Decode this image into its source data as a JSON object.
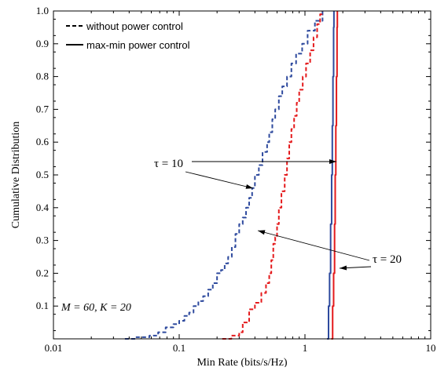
{
  "chart_data": {
    "type": "line",
    "xlabel": "Min Rate (bits/s/Hz)",
    "ylabel": "Cumulative Distribution",
    "xscale": "log",
    "xlim": [
      0.01,
      10
    ],
    "ylim": [
      0,
      1.0
    ],
    "x_ticks": [
      0.01,
      0.1,
      1,
      10
    ],
    "x_tick_labels": [
      "0.01",
      "0.1",
      "1",
      "10"
    ],
    "y_ticks": [
      0.1,
      0.2,
      0.3,
      0.4,
      0.5,
      0.6,
      0.7,
      0.8,
      0.9,
      1.0
    ],
    "y_tick_labels": [
      "0.1",
      "0.2",
      "0.3",
      "0.4",
      "0.5",
      "0.6",
      "0.7",
      "0.8",
      "0.9",
      "1.0"
    ],
    "grid": false,
    "legend": {
      "position": "top-left",
      "entries": [
        {
          "label": "without power control",
          "style": "dashed"
        },
        {
          "label": "max-min power control",
          "style": "solid"
        }
      ]
    },
    "annotations": {
      "tau10": "τ = 10",
      "tau20": "τ = 20",
      "params": "M = 60, K = 20"
    },
    "series": [
      {
        "color": "#2e4a9e",
        "style": "dashed",
        "points": [
          [
            0.037,
            0.0
          ],
          [
            0.045,
            0.005
          ],
          [
            0.058,
            0.01
          ],
          [
            0.068,
            0.02
          ],
          [
            0.078,
            0.035
          ],
          [
            0.09,
            0.045
          ],
          [
            0.1,
            0.055
          ],
          [
            0.11,
            0.07
          ],
          [
            0.12,
            0.08
          ],
          [
            0.13,
            0.1
          ],
          [
            0.142,
            0.115
          ],
          [
            0.155,
            0.13
          ],
          [
            0.17,
            0.15
          ],
          [
            0.185,
            0.17
          ],
          [
            0.2,
            0.2
          ],
          [
            0.215,
            0.21
          ],
          [
            0.23,
            0.23
          ],
          [
            0.245,
            0.25
          ],
          [
            0.262,
            0.28
          ],
          [
            0.28,
            0.32
          ],
          [
            0.3,
            0.35
          ],
          [
            0.32,
            0.37
          ],
          [
            0.34,
            0.4
          ],
          [
            0.36,
            0.43
          ],
          [
            0.38,
            0.46
          ],
          [
            0.4,
            0.5
          ],
          [
            0.43,
            0.53
          ],
          [
            0.46,
            0.57
          ],
          [
            0.5,
            0.6
          ],
          [
            0.52,
            0.63
          ],
          [
            0.55,
            0.67
          ],
          [
            0.58,
            0.7
          ],
          [
            0.62,
            0.74
          ],
          [
            0.66,
            0.77
          ],
          [
            0.72,
            0.8
          ],
          [
            0.78,
            0.84
          ],
          [
            0.85,
            0.87
          ],
          [
            0.95,
            0.9
          ],
          [
            1.05,
            0.94
          ],
          [
            1.2,
            0.97
          ],
          [
            1.38,
            1.0
          ]
        ]
      },
      {
        "color": "#e41a1c",
        "style": "dashed",
        "points": [
          [
            0.22,
            0.0
          ],
          [
            0.26,
            0.01
          ],
          [
            0.3,
            0.02
          ],
          [
            0.32,
            0.05
          ],
          [
            0.36,
            0.09
          ],
          [
            0.4,
            0.11
          ],
          [
            0.45,
            0.14
          ],
          [
            0.49,
            0.17
          ],
          [
            0.52,
            0.2
          ],
          [
            0.54,
            0.24
          ],
          [
            0.56,
            0.29
          ],
          [
            0.58,
            0.31
          ],
          [
            0.6,
            0.35
          ],
          [
            0.62,
            0.4
          ],
          [
            0.65,
            0.45
          ],
          [
            0.69,
            0.5
          ],
          [
            0.72,
            0.55
          ],
          [
            0.75,
            0.6
          ],
          [
            0.78,
            0.64
          ],
          [
            0.82,
            0.68
          ],
          [
            0.86,
            0.72
          ],
          [
            0.9,
            0.76
          ],
          [
            0.96,
            0.8
          ],
          [
            1.02,
            0.84
          ],
          [
            1.1,
            0.88
          ],
          [
            1.17,
            0.92
          ],
          [
            1.25,
            0.96
          ],
          [
            1.32,
            0.99
          ],
          [
            1.36,
            1.0
          ]
        ]
      },
      {
        "color": "#2e4a9e",
        "style": "solid",
        "points": [
          [
            1.5,
            0.0
          ],
          [
            1.54,
            0.1
          ],
          [
            1.57,
            0.2
          ],
          [
            1.6,
            0.35
          ],
          [
            1.63,
            0.5
          ],
          [
            1.65,
            0.65
          ],
          [
            1.67,
            0.8
          ],
          [
            1.69,
            0.95
          ],
          [
            1.7,
            1.0
          ]
        ]
      },
      {
        "color": "#e41a1c",
        "style": "solid",
        "points": [
          [
            1.62,
            0.0
          ],
          [
            1.66,
            0.1
          ],
          [
            1.69,
            0.2
          ],
          [
            1.72,
            0.35
          ],
          [
            1.74,
            0.5
          ],
          [
            1.76,
            0.65
          ],
          [
            1.78,
            0.8
          ],
          [
            1.8,
            0.95
          ],
          [
            1.81,
            1.0
          ]
        ]
      }
    ]
  }
}
